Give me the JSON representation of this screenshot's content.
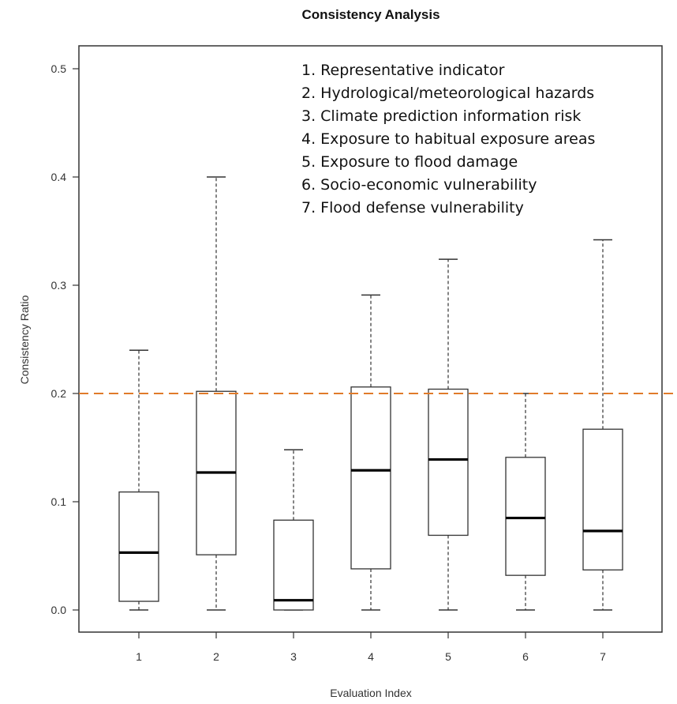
{
  "chart_data": {
    "type": "box",
    "title": "Consistency Analysis",
    "xlabel": "Evaluation Index",
    "ylabel": "Consistency Ratio",
    "ylim": [
      0,
      0.52
    ],
    "yticks": [
      "0.0",
      "0.1",
      "0.2",
      "0.3",
      "0.4",
      "0.5"
    ],
    "ytick_values": [
      0.0,
      0.1,
      0.2,
      0.3,
      0.4,
      0.5
    ],
    "categories": [
      "1",
      "2",
      "3",
      "4",
      "5",
      "6",
      "7"
    ],
    "boxes": [
      {
        "min": 0.0,
        "q1": 0.008,
        "median": 0.053,
        "q3": 0.109,
        "max": 0.24
      },
      {
        "min": 0.0,
        "q1": 0.051,
        "median": 0.127,
        "q3": 0.202,
        "max": 0.4
      },
      {
        "min": 0.0,
        "q1": 0.0,
        "median": 0.009,
        "q3": 0.083,
        "max": 0.148
      },
      {
        "min": 0.0,
        "q1": 0.038,
        "median": 0.129,
        "q3": 0.206,
        "max": 0.291
      },
      {
        "min": 0.0,
        "q1": 0.069,
        "median": 0.139,
        "q3": 0.204,
        "max": 0.324
      },
      {
        "min": 0.0,
        "q1": 0.032,
        "median": 0.085,
        "q3": 0.141,
        "max": 0.2
      },
      {
        "min": 0.0,
        "q1": 0.037,
        "median": 0.073,
        "q3": 0.167,
        "max": 0.342
      }
    ],
    "reference_line": {
      "y": 0.2,
      "color": "#e07b2a",
      "style": "dashed"
    },
    "legend_position": "top-right",
    "legend_entries": [
      "1. Representative indicator",
      "2. Hydrological/meteorological hazards",
      "3. Climate prediction information risk",
      "4. Exposure to habitual exposure areas",
      "5. Exposure to flood damage",
      "6. Socio-economic vulnerability",
      "7. Flood defense vulnerability"
    ],
    "grid": false
  }
}
